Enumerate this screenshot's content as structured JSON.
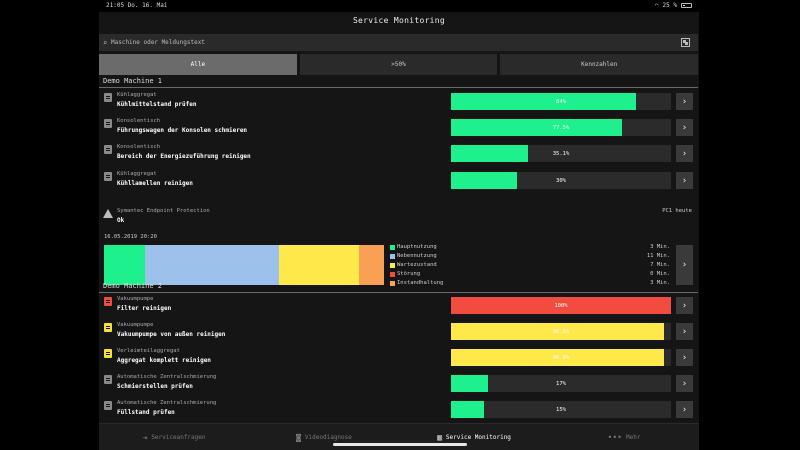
{
  "statusbar": {
    "time": "21:05",
    "date": "Do. 16. Mai",
    "battery": "25 %"
  },
  "header": {
    "title": "Service Monitoring"
  },
  "search": {
    "placeholder": "Maschine oder Meldungstext"
  },
  "tabs": [
    {
      "label": "Alle",
      "active": true
    },
    {
      "label": ">50%",
      "active": false
    },
    {
      "label": "Kennzahlen",
      "active": false
    }
  ],
  "machines": [
    {
      "name": "Demo Machine 1",
      "tasks": [
        {
          "category": "Kühlaggregat",
          "description": "Kühlmittelstand prüfen",
          "percent_label": "84%",
          "fill": 0.84,
          "color": "#1ef08e",
          "icon": "clipboard-icon",
          "icon_color": "gray"
        },
        {
          "category": "Konsolentisch",
          "description": "Führungswagen der Konsolen schmieren",
          "percent_label": "77.5%",
          "fill": 0.775,
          "color": "#1ef08e",
          "icon": "clipboard-icon",
          "icon_color": "gray"
        },
        {
          "category": "Konsolentisch",
          "description": "Bereich der Energiezuführung reinigen",
          "percent_label": "35.1%",
          "fill": 0.351,
          "color": "#1ef08e",
          "icon": "clipboard-icon",
          "icon_color": "gray"
        },
        {
          "category": "Kühlaggregat",
          "description": "Kühllamellen reinigen",
          "percent_label": "30%",
          "fill": 0.3,
          "color": "#1ef08e",
          "icon": "clipboard-icon",
          "icon_color": "gray"
        }
      ],
      "warning": {
        "category": "Symantec Endpoint Protection",
        "description": "Ok",
        "source": "PC1 heute",
        "icon": "warning-icon"
      },
      "timeline": {
        "date": "16.05.2019 20:20",
        "segments": [
          {
            "fraction": 0.145,
            "color": "#1ef08e"
          },
          {
            "fraction": 0.48,
            "color": "#9cc2ec"
          },
          {
            "fraction": 0.285,
            "color": "#ffe94a"
          },
          {
            "fraction": 0.09,
            "color": "#f9a055"
          }
        ],
        "legend": [
          {
            "label": "Hauptnutzung",
            "value": "3 Min.",
            "color": "#1ef08e"
          },
          {
            "label": "Nebennutzung",
            "value": "11 Min.",
            "color": "#9cc2ec"
          },
          {
            "label": "Wartezustand",
            "value": "7 Min.",
            "color": "#ffe94a"
          },
          {
            "label": "Störung",
            "value": "0 Min.",
            "color": "#f24b3f"
          },
          {
            "label": "Instandhaltung",
            "value": "3 Min.",
            "color": "#f9a055"
          }
        ]
      }
    },
    {
      "name": "Demo Machine 2",
      "tasks": [
        {
          "category": "Vakuumpumpe",
          "description": "Filter reinigen",
          "percent_label": "100%",
          "fill": 1.0,
          "color": "#f24b3f",
          "icon": "clipboard-icon",
          "icon_color": "red"
        },
        {
          "category": "Vakuumpumpe",
          "description": "Vakuumpumpe von außen reinigen",
          "percent_label": "96.6%",
          "fill": 0.966,
          "color": "#ffe94a",
          "icon": "clipboard-icon",
          "icon_color": "yellow"
        },
        {
          "category": "Verleimteilaggregat",
          "description": "Aggregat komplett reinigen",
          "percent_label": "96.6%",
          "fill": 0.966,
          "color": "#ffe94a",
          "icon": "clipboard-icon",
          "icon_color": "yellow"
        },
        {
          "category": "Automatische Zentralschmierung",
          "description": "Schmierstellen prüfen",
          "percent_label": "17%",
          "fill": 0.17,
          "color": "#1ef08e",
          "icon": "clipboard-icon",
          "icon_color": "gray"
        },
        {
          "category": "Automatische Zentralschmierung",
          "description": "Füllstand prüfen",
          "percent_label": "15%",
          "fill": 0.15,
          "color": "#1ef08e",
          "icon": "clipboard-icon",
          "icon_color": "gray"
        }
      ]
    }
  ],
  "bottomnav": [
    {
      "label": "Serviceanfragen",
      "icon": "inbox-icon",
      "glyph": "⇥",
      "active": false
    },
    {
      "label": "Videodiagnose",
      "icon": "camera-icon",
      "glyph": "◙",
      "active": false
    },
    {
      "label": "Service Monitoring",
      "icon": "chart-icon",
      "glyph": "▥",
      "active": true
    },
    {
      "label": "Mehr",
      "icon": "more-icon",
      "glyph": "•••",
      "active": false
    }
  ]
}
